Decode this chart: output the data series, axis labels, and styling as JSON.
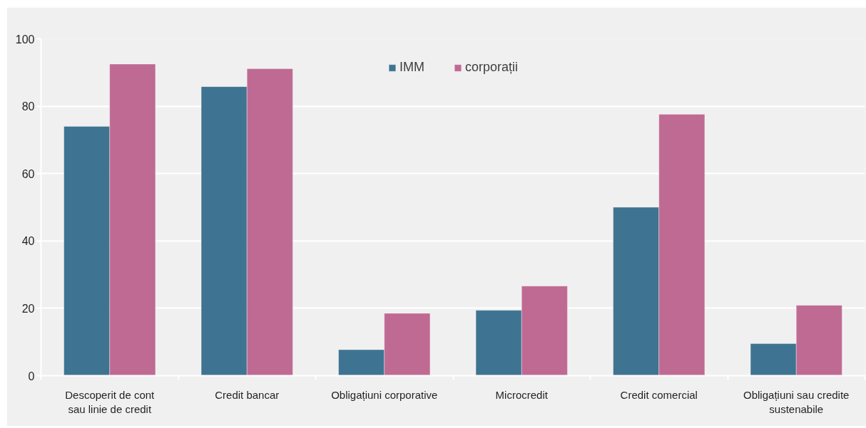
{
  "chart_data": {
    "type": "bar",
    "categories": [
      "Descoperit de cont\nsau linie de credit",
      "Credit bancar",
      "Obligațiuni corporative",
      "Microcredit",
      "Credit comercial",
      "Obligațiuni sau credite\nsustenabile"
    ],
    "series": [
      {
        "name": "IMM",
        "color": "#3e7491",
        "values": [
          74.0,
          85.8,
          7.7,
          19.4,
          50.0,
          9.5
        ]
      },
      {
        "name": "corporații",
        "color": "#bf6a93",
        "values": [
          92.5,
          91.1,
          18.5,
          26.6,
          77.6,
          20.9
        ]
      }
    ],
    "ylim": [
      0,
      100
    ],
    "yticks": [
      0,
      20,
      40,
      60,
      80,
      100
    ],
    "grid": "y",
    "legend": "top"
  }
}
